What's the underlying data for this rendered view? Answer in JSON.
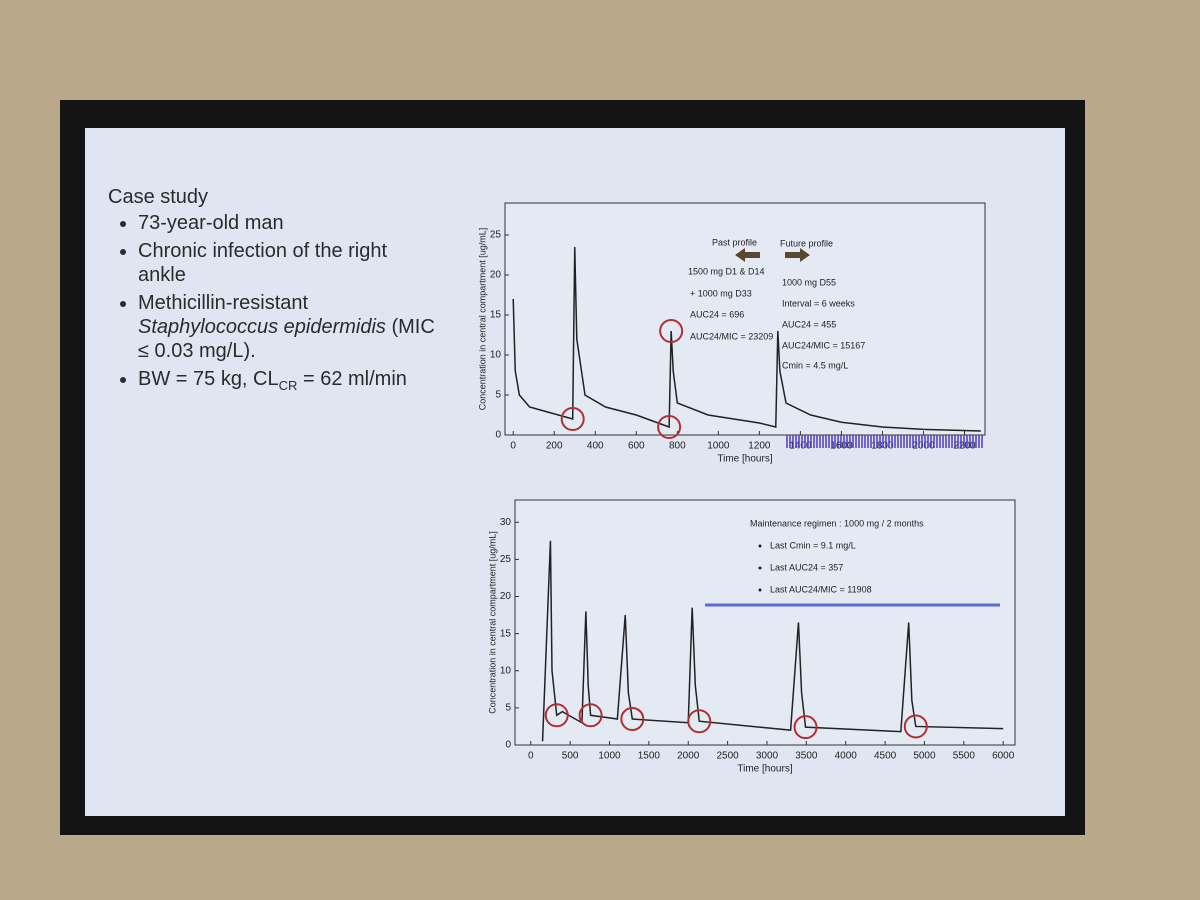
{
  "slide": {
    "heading": "Case study",
    "bullets": [
      [
        "73-year-old man"
      ],
      [
        "Chronic infection of the right ankle"
      ],
      [
        "Methicillin-resistant",
        "Staphylococcus epidermidis",
        "(MIC ≤ 0.03 mg/L)."
      ],
      [
        "BW = 75 kg, CL",
        "CR",
        " = 62 ml/min"
      ]
    ]
  },
  "chart_data": [
    {
      "type": "line",
      "ylabel": "Concentration in central compartment [ug/mL]",
      "xlabel": "Time [hours]",
      "color": "#222222",
      "x": [
        0,
        10,
        30,
        80,
        150,
        290,
        300,
        310,
        350,
        450,
        600,
        760,
        770,
        780,
        800,
        950,
        1200,
        1280,
        1290,
        1300,
        1330,
        1450,
        1600,
        1800,
        2000,
        2280
      ],
      "values": [
        17,
        8,
        5,
        3.5,
        3,
        2,
        23.5,
        12,
        5,
        3.5,
        2.5,
        1,
        13,
        8,
        4,
        2.5,
        1.5,
        1,
        13,
        8,
        4,
        2.5,
        1.6,
        1,
        0.7,
        0.5
      ],
      "xlim": [
        -40,
        2300
      ],
      "ylim": [
        0,
        29
      ],
      "xticks": [
        0,
        200,
        400,
        600,
        800,
        1000,
        1200,
        1400,
        1600,
        1800,
        2000,
        2200
      ],
      "yticks": [
        0,
        5,
        10,
        15,
        20,
        25
      ],
      "annotations": [
        "Past profile",
        "Future profile",
        "1500 mg D1 & D14",
        "+ 1000 mg D33",
        "AUC24 = 696",
        "AUC24/MIC = 23209",
        "1000 mg D55",
        "Interval = 6 weeks",
        "AUC24 = 455",
        "AUC24/MIC = 15167",
        "Cmin = 4.5 mg/L"
      ]
    },
    {
      "type": "line",
      "ylabel": "Concentration in central compartment [ug/mL]",
      "xlabel": "Time [hours]",
      "color": "#222222",
      "x": [
        150,
        250,
        270,
        330,
        400,
        650,
        700,
        730,
        760,
        1100,
        1200,
        1240,
        1290,
        2000,
        2050,
        2090,
        2140,
        3300,
        3400,
        3440,
        3490,
        4700,
        4800,
        4840,
        4890,
        6000
      ],
      "values": [
        0.5,
        27.5,
        10,
        4,
        4.5,
        3,
        18,
        8,
        4,
        3.5,
        17.5,
        7,
        3.5,
        3,
        18.5,
        8,
        3.2,
        2,
        16.5,
        7,
        2.4,
        1.8,
        16.5,
        6,
        2.5,
        2.2
      ],
      "xlim": [
        -200,
        6150
      ],
      "ylim": [
        0,
        33
      ],
      "xticks": [
        0,
        500,
        1000,
        1500,
        2000,
        2500,
        3000,
        3500,
        4000,
        4500,
        5000,
        5500,
        6000
      ],
      "yticks": [
        0,
        5,
        10,
        15,
        20,
        25,
        30
      ],
      "annotations": [
        "Maintenance regimen : 1000 mg / 2 months",
        "Last Cmin = 9.1 mg/L",
        "Last AUC24 = 357",
        "Last AUC24/MIC = 11908"
      ]
    }
  ]
}
